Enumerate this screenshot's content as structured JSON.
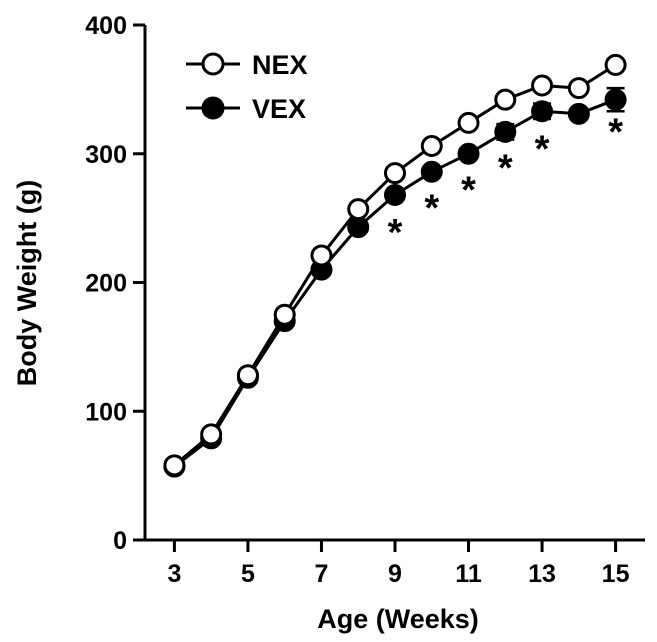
{
  "chart_data": {
    "type": "line",
    "title": "",
    "xlabel": "Age (Weeks)",
    "ylabel": "Body Weight (g)",
    "xlim": [
      2.2,
      15.8
    ],
    "ylim": [
      0,
      400
    ],
    "xticks": [
      3,
      5,
      7,
      9,
      11,
      13,
      15
    ],
    "yticks": [
      0,
      100,
      200,
      300,
      400
    ],
    "legend_position": "top-left",
    "grid": false,
    "x": [
      3,
      4,
      5,
      6,
      7,
      8,
      9,
      10,
      11,
      12,
      13,
      14,
      15
    ],
    "series": [
      {
        "name": "NEX",
        "marker": "open-circle",
        "color": "#000000",
        "values": [
          58,
          82,
          128,
          175,
          221,
          257,
          285,
          306,
          324,
          342,
          353,
          351,
          369
        ],
        "error": [
          0,
          0,
          0,
          0,
          0,
          0,
          0,
          0,
          0,
          0,
          0,
          0,
          0
        ]
      },
      {
        "name": "VEX",
        "marker": "filled-circle",
        "color": "#000000",
        "values": [
          57,
          79,
          126,
          170,
          210,
          243,
          268,
          286,
          300,
          317,
          333,
          331,
          342
        ],
        "error": [
          0,
          0,
          0,
          0,
          0,
          0,
          0,
          0,
          0,
          6,
          6,
          0,
          9
        ]
      }
    ],
    "annotations": [
      {
        "text": "*",
        "x": 9,
        "y": 240
      },
      {
        "text": "*",
        "x": 10,
        "y": 259
      },
      {
        "text": "*",
        "x": 11,
        "y": 273
      },
      {
        "text": "*",
        "x": 12,
        "y": 290
      },
      {
        "text": "*",
        "x": 13,
        "y": 305
      },
      {
        "text": "*",
        "x": 15,
        "y": 318
      }
    ]
  }
}
